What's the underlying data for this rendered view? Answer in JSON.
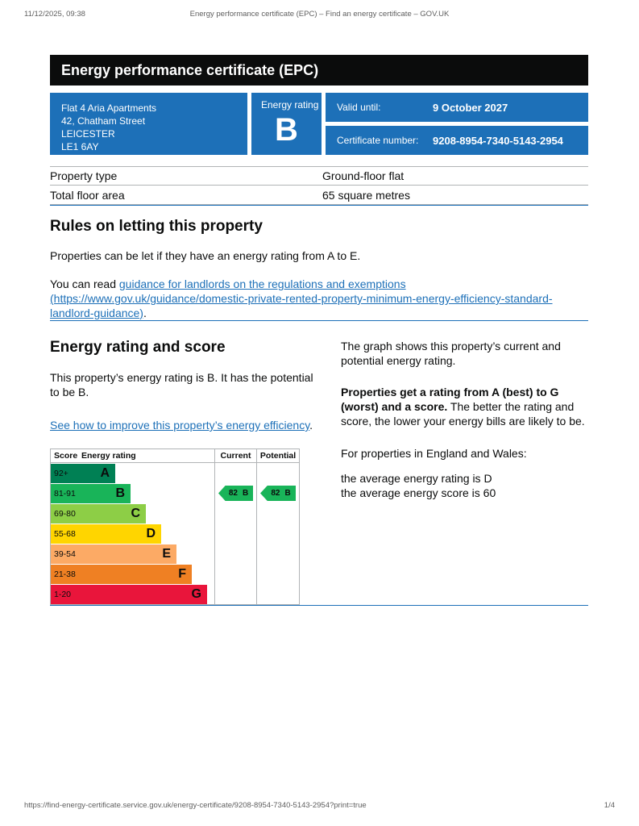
{
  "print_header": {
    "datetime": "11/12/2025, 09:38",
    "title": "Energy performance certificate (EPC) – Find an energy certificate – GOV.UK"
  },
  "banner": {
    "title": "Energy performance certificate (EPC)"
  },
  "summary": {
    "address_lines": [
      "Flat 4 Aria Apartments",
      "42, Chatham Street",
      "LEICESTER",
      "LE1 6AY"
    ],
    "energy_rating_label": "Energy rating",
    "energy_rating": "B",
    "valid_until_label": "Valid until:",
    "valid_until_value": "9 October 2027",
    "certificate_number_label": "Certificate number:",
    "certificate_number_value": "9208-8954-7340-5143-2954"
  },
  "property_table": {
    "rows": [
      {
        "label": "Property type",
        "value": "Ground-floor flat"
      },
      {
        "label": "Total floor area",
        "value": "65 square metres"
      }
    ]
  },
  "rules": {
    "heading": "Rules on letting this property",
    "para1": "Properties can be let if they have an energy rating from A to E.",
    "para2_prefix": "You can read ",
    "para2_link": "guidance for landlords on the regulations and exemptions (https://www.gov.uk/guidance/domestic-private-rented-property-minimum-energy-efficiency-standard-landlord-guidance)",
    "para2_suffix": "."
  },
  "rating_section": {
    "heading": "Energy rating and score",
    "para1": "This property’s energy rating is B. It has the potential to be B.",
    "improve_link": "See how to improve this property’s energy efficiency",
    "improve_suffix": ".",
    "right": {
      "para1": "The graph shows this property’s current and potential energy rating.",
      "para2_bold": "Properties get a rating from A (best) to G (worst) and a score.",
      "para2_rest": " The better the rating and score, the lower your energy bills are likely to be.",
      "para3": "For properties in England and Wales:",
      "para4_line1": "the average energy rating is D",
      "para4_line2": "the average energy score is 60"
    }
  },
  "chart_data": {
    "type": "bar",
    "title": "Energy rating and score",
    "headers": {
      "score": "Score",
      "rating": "Energy rating",
      "current": "Current",
      "potential": "Potential"
    },
    "bands": [
      {
        "score": "92+",
        "letter": "A",
        "color": "#008054"
      },
      {
        "score": "81-91",
        "letter": "B",
        "color": "#19b459"
      },
      {
        "score": "69-80",
        "letter": "C",
        "color": "#8dce46"
      },
      {
        "score": "55-68",
        "letter": "D",
        "color": "#ffd500"
      },
      {
        "score": "39-54",
        "letter": "E",
        "color": "#fcaa65"
      },
      {
        "score": "21-38",
        "letter": "F",
        "color": "#ef8023"
      },
      {
        "score": "1-20",
        "letter": "G",
        "color": "#e9153b"
      }
    ],
    "current": {
      "score": "82",
      "letter": "B",
      "band_index": 1,
      "color": "#19b459"
    },
    "potential": {
      "score": "82",
      "letter": "B",
      "band_index": 1,
      "color": "#19b459"
    }
  },
  "colors": {
    "govuk_blue": "#1d70b8",
    "banner_black": "#0b0c0c",
    "border_grey": "#b1b4b6",
    "link_blue": "#1d70b8"
  },
  "print_footer": {
    "url": "https://find-energy-certificate.service.gov.uk/energy-certificate/9208-8954-7340-5143-2954?print=true",
    "page": "1/4"
  }
}
